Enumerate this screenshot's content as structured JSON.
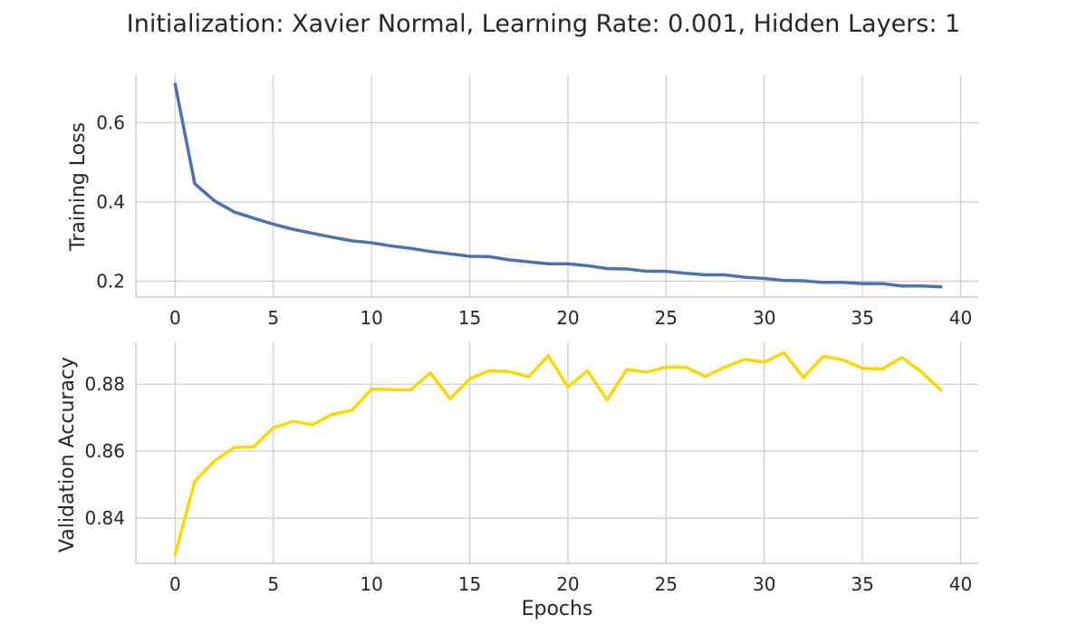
{
  "title": "Initialization: Xavier Normal, Learning Rate: 0.001, Hidden Layers: 1",
  "xlabel": "Epochs",
  "chart_data": [
    {
      "type": "line",
      "ylabel": "Training Loss",
      "color": "#4c72b0",
      "xlim": [
        -2,
        40.9
      ],
      "ylim": [
        0.16,
        0.72
      ],
      "xticks": [
        0,
        5,
        10,
        15,
        20,
        25,
        30,
        35,
        40
      ],
      "xtick_labels": [
        "0",
        "5",
        "10",
        "15",
        "20",
        "25",
        "30",
        "35",
        "40"
      ],
      "yticks": [
        0.2,
        0.4,
        0.6
      ],
      "ytick_labels": [
        "0.2",
        "0.4",
        "0.6"
      ],
      "grid": true,
      "x": [
        0,
        1,
        2,
        3,
        4,
        5,
        6,
        7,
        8,
        9,
        10,
        11,
        12,
        13,
        14,
        15,
        16,
        17,
        18,
        19,
        20,
        21,
        22,
        23,
        24,
        25,
        26,
        27,
        28,
        29,
        30,
        31,
        32,
        33,
        34,
        35,
        36,
        37,
        38,
        39
      ],
      "values": [
        0.697,
        0.446,
        0.403,
        0.375,
        0.359,
        0.344,
        0.331,
        0.321,
        0.311,
        0.302,
        0.297,
        0.289,
        0.283,
        0.275,
        0.269,
        0.263,
        0.262,
        0.254,
        0.249,
        0.244,
        0.244,
        0.239,
        0.232,
        0.231,
        0.225,
        0.225,
        0.22,
        0.216,
        0.216,
        0.21,
        0.207,
        0.202,
        0.201,
        0.197,
        0.197,
        0.194,
        0.194,
        0.188,
        0.188,
        0.186
      ]
    },
    {
      "type": "line",
      "ylabel": "Validation Accuracy",
      "color": "#ffd700",
      "xlim": [
        -2,
        40.9
      ],
      "ylim": [
        0.8265,
        0.8925
      ],
      "xticks": [
        0,
        5,
        10,
        15,
        20,
        25,
        30,
        35,
        40
      ],
      "xtick_labels": [
        "0",
        "5",
        "10",
        "15",
        "20",
        "25",
        "30",
        "35",
        "40"
      ],
      "yticks": [
        0.84,
        0.86,
        0.88
      ],
      "ytick_labels": [
        "0.84",
        "0.86",
        "0.88"
      ],
      "grid": true,
      "x": [
        0,
        1,
        2,
        3,
        4,
        5,
        6,
        7,
        8,
        9,
        10,
        11,
        12,
        13,
        14,
        15,
        16,
        17,
        18,
        19,
        20,
        21,
        22,
        23,
        24,
        25,
        26,
        27,
        28,
        29,
        30,
        31,
        32,
        33,
        34,
        35,
        36,
        37,
        38,
        39
      ],
      "values": [
        0.8292,
        0.851,
        0.857,
        0.8611,
        0.8613,
        0.867,
        0.8689,
        0.8679,
        0.871,
        0.8722,
        0.8785,
        0.8784,
        0.8783,
        0.8834,
        0.8756,
        0.8816,
        0.884,
        0.8838,
        0.8822,
        0.8885,
        0.8792,
        0.884,
        0.8753,
        0.8844,
        0.8836,
        0.8851,
        0.8851,
        0.8823,
        0.8851,
        0.8874,
        0.8866,
        0.8894,
        0.882,
        0.8883,
        0.8873,
        0.8848,
        0.8845,
        0.888,
        0.8837,
        0.8782
      ]
    }
  ]
}
